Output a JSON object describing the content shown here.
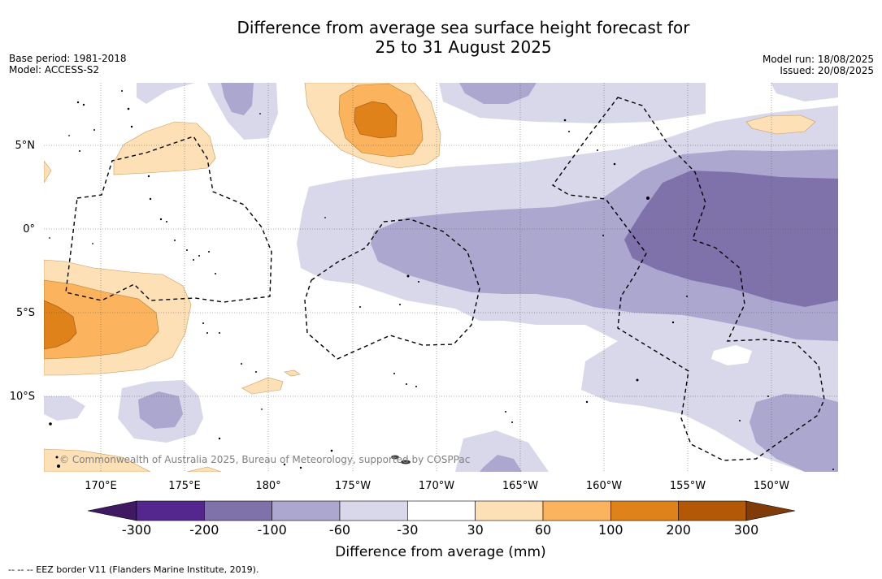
{
  "title": {
    "line1": "Difference from average sea surface height forecast for",
    "line2": "25 to 31 August 2025"
  },
  "meta_left": {
    "base_period": "Base period: 1981-2018",
    "model": "Model: ACCESS-S2"
  },
  "meta_right": {
    "model_run": "Model run: 18/08/2025",
    "issued": "Issued: 20/08/2025"
  },
  "map": {
    "latitude_labels": [
      "5°N",
      "0°",
      "5°S",
      "10°S"
    ],
    "longitude_labels": [
      "170°E",
      "175°E",
      "180°",
      "175°W",
      "170°W",
      "165°W",
      "160°W",
      "155°W",
      "150°W"
    ],
    "copyright": "© Commonwealth of Australia 2025, Bureau of Meteorology, supported by COSPPac"
  },
  "colorbar": {
    "tick_labels": [
      "-300",
      "-200",
      "-100",
      "-60",
      "-30",
      "30",
      "60",
      "100",
      "200",
      "300"
    ],
    "colors": [
      "#3f1a63",
      "#54278f",
      "#7f72ab",
      "#aca7cf",
      "#d8d8ea",
      "#ffffff",
      "#fee0b6",
      "#fbb35e",
      "#e0821a",
      "#b35807",
      "#7f3b08"
    ],
    "label": "Difference from average (mm)"
  },
  "footnote": "--  --  -- EEZ border V11 (Flanders Marine Institute, 2019)."
}
